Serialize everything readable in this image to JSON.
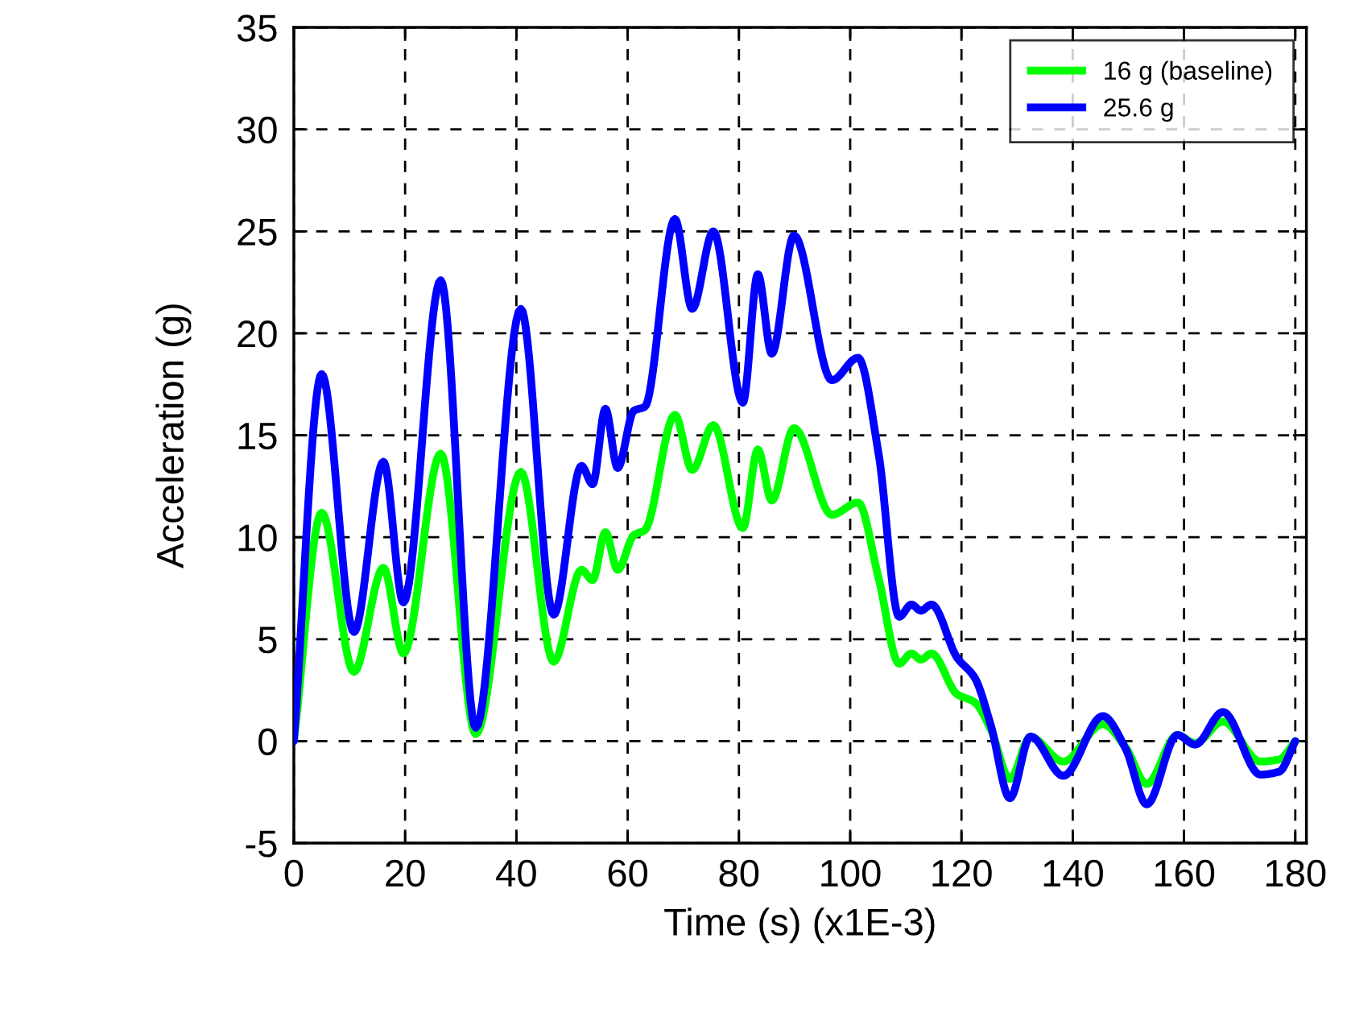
{
  "chart_data": {
    "type": "line",
    "xlabel": "Time (s) (x1E-3)",
    "ylabel": "Acceleration (g)",
    "xlim": [
      0,
      182
    ],
    "ylim": [
      -5,
      35
    ],
    "xticks": [
      0,
      20,
      40,
      60,
      80,
      100,
      120,
      140,
      160,
      180
    ],
    "yticks": [
      -5,
      0,
      5,
      10,
      15,
      20,
      25,
      30,
      35
    ],
    "grid": true,
    "legend": "top right",
    "line_style": "solid",
    "marker": "none",
    "series": [
      {
        "name": "16 g (baseline)",
        "color": "#00ff00",
        "x": [
          0,
          5.0,
          10.8,
          16.1,
          19.7,
          26.4,
          32.7,
          40.8,
          46.7,
          51.7,
          53.7,
          56.0,
          58.2,
          61.1,
          63.1,
          68.5,
          71.6,
          75.4,
          80.7,
          83.4,
          85.9,
          89.9,
          96.7,
          101.4,
          105.1,
          108.8,
          111.0,
          112.7,
          114.6,
          119.2,
          122.4,
          125.3,
          128.7,
          132.4,
          138.3,
          145.4,
          149.5,
          153.3,
          158.8,
          162.0,
          167.0,
          173.7,
          177.1,
          180
        ],
        "values": [
          0,
          11.2,
          3.4,
          8.5,
          4.3,
          14.1,
          0.35,
          13.2,
          3.9,
          8.4,
          7.9,
          10.25,
          8.4,
          10.1,
          10.35,
          16.0,
          13.3,
          15.5,
          10.45,
          14.3,
          11.8,
          15.35,
          11.1,
          11.7,
          8.0,
          3.8,
          4.3,
          4.0,
          4.3,
          2.3,
          1.9,
          0.55,
          -1.85,
          0.2,
          -1.0,
          0.83,
          -0.3,
          -2.1,
          0.3,
          -0.1,
          0.96,
          -1.0,
          -0.9,
          0
        ]
      },
      {
        "name": "25.6 g",
        "color": "#0000ff",
        "x": [
          0,
          5.0,
          10.8,
          16.1,
          19.7,
          26.4,
          32.7,
          40.8,
          46.7,
          51.7,
          53.7,
          56.0,
          58.2,
          61.1,
          63.1,
          68.5,
          71.6,
          75.4,
          80.7,
          83.4,
          85.9,
          89.9,
          96.7,
          101.4,
          105.1,
          108.8,
          111.0,
          112.7,
          114.6,
          119.2,
          122.4,
          125.3,
          128.7,
          132.4,
          138.3,
          145.4,
          149.5,
          153.3,
          158.8,
          162.0,
          167.0,
          173.7,
          177.1,
          180
        ],
        "values": [
          0,
          18.0,
          5.35,
          13.7,
          6.8,
          22.6,
          0.65,
          21.2,
          6.2,
          13.5,
          12.6,
          16.3,
          13.4,
          16.2,
          16.4,
          25.6,
          21.2,
          25.0,
          16.6,
          22.9,
          19.0,
          24.8,
          17.7,
          18.8,
          14.1,
          6.1,
          6.7,
          6.4,
          6.7,
          4.1,
          3.1,
          0.75,
          -2.8,
          0.23,
          -1.7,
          1.23,
          -0.37,
          -3.1,
          0.3,
          -0.17,
          1.43,
          -1.64,
          -1.5,
          0
        ]
      }
    ]
  }
}
